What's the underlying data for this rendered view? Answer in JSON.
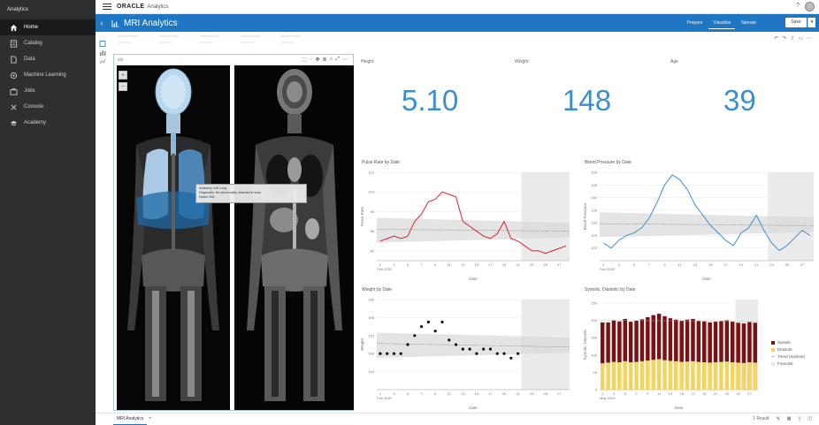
{
  "leftnav": {
    "brand": "Analytics",
    "items": [
      {
        "label": "Home",
        "icon": "home-icon"
      },
      {
        "label": "Catalog",
        "icon": "catalog-icon"
      },
      {
        "label": "Data",
        "icon": "data-icon"
      },
      {
        "label": "Machine Learning",
        "icon": "machine-learning-icon"
      },
      {
        "label": "Jobs",
        "icon": "jobs-icon"
      },
      {
        "label": "Console",
        "icon": "console-icon"
      },
      {
        "label": "Academy",
        "icon": "academy-icon"
      }
    ]
  },
  "header": {
    "oracle": "ORACLE",
    "product": "Analytics",
    "help": "?"
  },
  "titlebar": {
    "back": "‹",
    "title": "MRI Analytics",
    "modes": [
      "Prepare",
      "Visualize",
      "Narrate"
    ],
    "active_mode": "Visualize",
    "save_label": "Save",
    "save_dropdown": "▾"
  },
  "mri": {
    "title": "viz",
    "zoom_in": "+",
    "zoom_out": "−",
    "tooltip_line1": "Anatomy: Left Lung",
    "tooltip_line2": "Diagnostic: No abnormality detected in scan",
    "tooltip_line3": "Notes: N/A"
  },
  "kpis": [
    {
      "label": "Height",
      "value": "5.10"
    },
    {
      "label": "Weight",
      "value": "148"
    },
    {
      "label": "Age",
      "value": "39"
    }
  ],
  "bottom": {
    "tab": "MRI Analytics",
    "add": "+",
    "status": "1 Result"
  },
  "colors": {
    "accent": "#1f77c4",
    "kpi": "#3c8fcd",
    "pulse": "#d9232d",
    "bp": "#3c8fcd",
    "systolic": "#7b1113",
    "diastolic": "#f4d35e",
    "forecast": "#e6e6e6"
  },
  "chart_data": [
    {
      "type": "line",
      "title": "Pulse Rate by Date",
      "xlabel": "Date",
      "ylabel": "Pulse Rate",
      "x": [
        "1",
        "2",
        "3",
        "4",
        "5",
        "6",
        "7",
        "8",
        "9",
        "10",
        "11",
        "12",
        "13",
        "14",
        "15",
        "16",
        "17",
        "18",
        "19",
        "20",
        "21",
        "22",
        "23",
        "24",
        "25",
        "26",
        "27",
        "28"
      ],
      "xticks": [
        "1",
        "3",
        "5",
        "7",
        "9",
        "11",
        "13",
        "15",
        "17",
        "19",
        "21",
        "23",
        "25",
        "27"
      ],
      "xtick_sub": "Feb 2020",
      "series": [
        {
          "values": [
            84,
            85,
            86,
            85,
            86,
            92,
            95,
            100,
            101,
            104,
            103,
            102,
            92,
            90,
            88,
            86,
            85,
            87,
            92,
            85,
            84,
            82,
            80,
            80,
            79,
            80,
            81,
            82
          ]
        }
      ],
      "ylim": [
        76,
        112
      ],
      "yticks": [
        80,
        88,
        96,
        104,
        112
      ],
      "forecast_from": 21
    },
    {
      "type": "line",
      "title": "Blood Pressure by Date",
      "xlabel": "Date",
      "ylabel": "Blood Pressure",
      "x": [
        "1",
        "2",
        "3",
        "4",
        "5",
        "6",
        "7",
        "8",
        "9",
        "10",
        "11",
        "12",
        "13",
        "14",
        "15",
        "16",
        "17",
        "18",
        "19",
        "20",
        "21",
        "22",
        "23",
        "24",
        "25",
        "26",
        "27",
        "28"
      ],
      "xticks": [
        "1",
        "3",
        "5",
        "7",
        "9",
        "11",
        "13",
        "15",
        "17",
        "19",
        "21",
        "23",
        "25",
        "27"
      ],
      "xtick_sub": "Feb 2020",
      "series": [
        {
          "values": [
            122,
            120,
            123,
            125,
            126,
            128,
            132,
            138,
            145,
            149,
            147,
            143,
            137,
            133,
            129,
            126,
            123,
            121,
            126,
            128,
            133,
            127,
            122,
            119,
            121,
            124,
            127,
            125
          ]
        }
      ],
      "ylim": [
        115,
        150
      ],
      "yticks": [
        120,
        125,
        130,
        135,
        140,
        145,
        150
      ],
      "forecast_from": 22
    },
    {
      "type": "scatter",
      "title": "Weight by Date",
      "xlabel": "Date",
      "ylabel": "Weight",
      "x": [
        1,
        2,
        3,
        4,
        5,
        6,
        7,
        8,
        9,
        10,
        11,
        12,
        13,
        14,
        15,
        16,
        17,
        18,
        19,
        20,
        21
      ],
      "xticks": [
        "1",
        "3",
        "5",
        "7",
        "9",
        "11",
        "13",
        "15",
        "17",
        "19",
        "21",
        "23",
        "25",
        "27"
      ],
      "xtick_sub": "Feb 2020",
      "series": [
        {
          "values": [
            148,
            148,
            148,
            148,
            150,
            152,
            154,
            155,
            153,
            155,
            151,
            150,
            149,
            149,
            148,
            149,
            149,
            148,
            148,
            147,
            148
          ]
        }
      ],
      "ylim": [
        140,
        160
      ],
      "yticks": [
        144,
        148,
        152,
        156,
        160
      ],
      "forecast_from": 21
    },
    {
      "type": "bar",
      "title": "Systolic, Diastolic by Date",
      "xlabel": "Date",
      "ylabel": "Systolic, Diastolic",
      "categories": [
        "1",
        "2",
        "3",
        "4",
        "5",
        "6",
        "7",
        "8",
        "9",
        "10",
        "11",
        "12",
        "13",
        "14",
        "15",
        "16",
        "17",
        "18",
        "19",
        "20",
        "21",
        "22",
        "23",
        "24",
        "25",
        "26",
        "27",
        "28"
      ],
      "xticks": [
        "1",
        "3",
        "5",
        "7",
        "9",
        "11",
        "13",
        "15",
        "17",
        "19",
        "21",
        "23",
        "25",
        "27"
      ],
      "xtick_sub": "May 2020",
      "series": [
        {
          "name": "Systolic",
          "values": [
            118,
            116,
            120,
            118,
            122,
            117,
            119,
            121,
            125,
            129,
            131,
            127,
            123,
            120,
            119,
            121,
            122,
            119,
            118,
            116,
            117,
            118,
            119,
            117,
            115,
            114,
            116,
            115
          ]
        },
        {
          "name": "Diastolic",
          "values": [
            76,
            78,
            80,
            79,
            82,
            79,
            80,
            82,
            84,
            86,
            88,
            85,
            83,
            82,
            80,
            81,
            82,
            80,
            79,
            78,
            79,
            80,
            81,
            79,
            78,
            77,
            79,
            78
          ]
        }
      ],
      "stacked": true,
      "ylim": [
        0,
        260
      ],
      "yticks": [
        0,
        50,
        100,
        150,
        200,
        250
      ],
      "legend": [
        "Systolic",
        "Diastolic",
        "Trend (Systolic)",
        "Forecast"
      ],
      "legend_position": "right",
      "forecast_from": 24
    }
  ]
}
